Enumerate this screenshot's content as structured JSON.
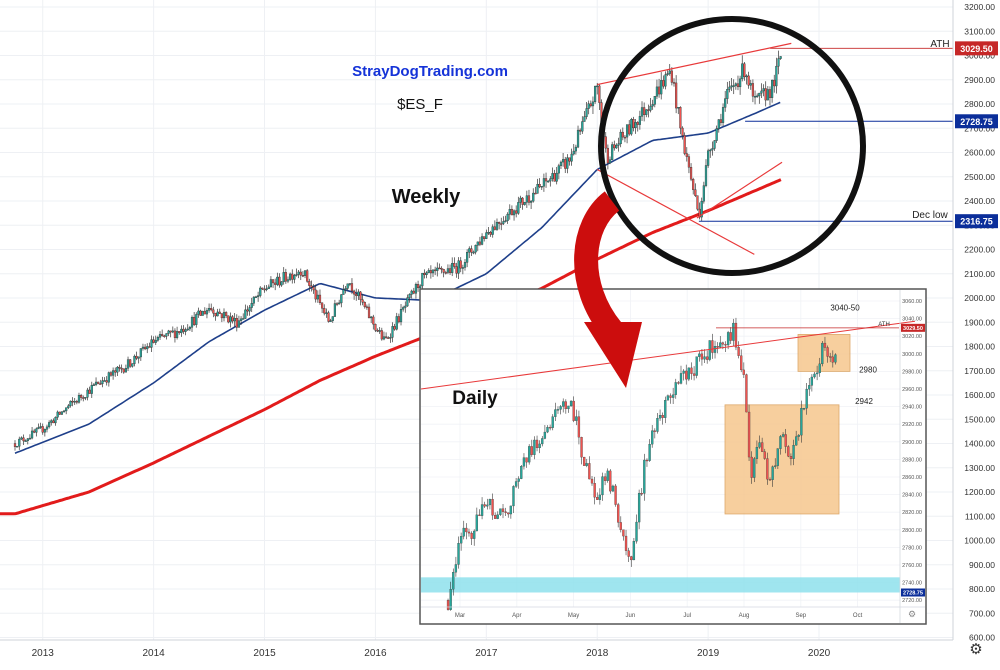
{
  "annotations": {
    "site": "StrayDogTrading.com",
    "symbol": "$ES_F",
    "weekly_label": "Weekly",
    "daily_label": "Daily",
    "ath": "ATH",
    "dec_low": "Dec low"
  },
  "colors": {
    "up_candle": "#26a69a",
    "down_candle": "#ef5350",
    "ma_fast": "#1e3f8a",
    "ma_slow": "#e21b1b",
    "trendline": "#e8393a",
    "blue_level": "#0b2e9a",
    "highlight_box": "#f6c78e",
    "support_zone": "#8ee0ec",
    "site_text": "#1533d8",
    "arrow": "#cc0d0d",
    "circle": "#111111"
  },
  "chart_data": [
    {
      "type": "line",
      "title": "",
      "timeframe": "Weekly",
      "x_tick_labels": [
        "2013",
        "2014",
        "2015",
        "2016",
        "2017",
        "2018",
        "2019",
        "2020"
      ],
      "y_tick_labels": [
        "3200.00",
        "3100.00",
        "3000.00",
        "2900.00",
        "2800.00",
        "2700.00",
        "2600.00",
        "2500.00",
        "2400.00",
        "2300.00",
        "2200.00",
        "2100.00",
        "2000.00",
        "1900.00",
        "1800.00",
        "1700.00",
        "1600.00",
        "1500.00",
        "1400.00",
        "1300.00",
        "1200.00",
        "1100.00",
        "1000.00",
        "900.00",
        "800.00",
        "700.00",
        "600.00"
      ],
      "ylim": [
        600,
        3200
      ],
      "price_series": {
        "name": "",
        "x": [
          "2012-10",
          "2013-01",
          "2013-04",
          "2013-07",
          "2013-10",
          "2014-01",
          "2014-04",
          "2014-07",
          "2014-10",
          "2015-01",
          "2015-05",
          "2015-08",
          "2015-10",
          "2016-01",
          "2016-02",
          "2016-06",
          "2016-10",
          "2017-01",
          "2017-04",
          "2017-07",
          "2017-10",
          "2018-01",
          "2018-02",
          "2018-06",
          "2018-09",
          "2018-10",
          "2018-12",
          "2019-01",
          "2019-03",
          "2019-05",
          "2019-06",
          "2019-08",
          "2019-09"
        ],
        "values": [
          1400,
          1460,
          1560,
          1650,
          1720,
          1820,
          1870,
          1960,
          1900,
          2040,
          2120,
          1900,
          2080,
          1880,
          1820,
          2080,
          2130,
          2270,
          2370,
          2460,
          2570,
          2870,
          2580,
          2770,
          2940,
          2700,
          2340,
          2590,
          2830,
          2950,
          2800,
          2870,
          3020
        ]
      },
      "ma_fast": {
        "name": "",
        "x": [
          "2012-10",
          "2013-06",
          "2014-01",
          "2014-07",
          "2015-01",
          "2015-07",
          "2016-01",
          "2016-07",
          "2017-01",
          "2017-07",
          "2018-01",
          "2018-07",
          "2019-01",
          "2019-06",
          "2019-09"
        ],
        "values": [
          1360,
          1480,
          1650,
          1820,
          1950,
          2060,
          2000,
          1990,
          2100,
          2290,
          2530,
          2650,
          2680,
          2760,
          2810
        ]
      },
      "ma_slow": {
        "name": "",
        "x": [
          "2012-06",
          "2012-10",
          "2013-06",
          "2014-01",
          "2014-07",
          "2015-01",
          "2015-07",
          "2016-01",
          "2016-07",
          "2017-01",
          "2017-07",
          "2018-01",
          "2018-07",
          "2019-01",
          "2019-09"
        ],
        "values": [
          1110,
          1110,
          1200,
          1320,
          1430,
          1540,
          1660,
          1760,
          1850,
          1940,
          2040,
          2160,
          2270,
          2360,
          2490
        ]
      },
      "levels": [
        {
          "label": "ATH",
          "value": 3029.5
        },
        {
          "label": "",
          "value": 2728.75
        },
        {
          "label": "Dec low",
          "value": 2316.75
        }
      ]
    },
    {
      "type": "line",
      "title": "",
      "timeframe": "Daily",
      "x_tick_labels": [
        "Mar",
        "Apr",
        "May",
        "Jun",
        "Jul",
        "Aug",
        "Sep",
        "Oct"
      ],
      "y_tick_labels": [
        "3060.00",
        "3040.00",
        "3020.00",
        "3000.00",
        "2980.00",
        "2960.00",
        "2940.00",
        "2920.00",
        "2900.00",
        "2880.00",
        "2860.00",
        "2840.00",
        "2820.00",
        "2800.00",
        "2780.00",
        "2760.00",
        "2740.00",
        "2720.00"
      ],
      "ylim": [
        2710,
        3070
      ],
      "price_series": {
        "name": "",
        "x": [
          "Feb 25",
          "Mar 1",
          "Mar 8",
          "Mar 15",
          "Mar 25",
          "Apr 5",
          "Apr 15",
          "Apr 30",
          "May 7",
          "May 13",
          "May 20",
          "May 31",
          "Jun 3",
          "Jun 10",
          "Jun 20",
          "Jul 1",
          "Jul 8",
          "Jul 15",
          "Jul 26",
          "Aug 1",
          "Aug 5",
          "Aug 9",
          "Aug 15",
          "Aug 22",
          "Aug 26",
          "Sep 3",
          "Sep 9",
          "Sep 13",
          "Sep 20"
        ],
        "values": [
          2720,
          2790,
          2800,
          2830,
          2810,
          2880,
          2910,
          2950,
          2870,
          2840,
          2860,
          2760,
          2800,
          2890,
          2940,
          2980,
          2990,
          3010,
          3025,
          2980,
          2850,
          2910,
          2850,
          2920,
          2870,
          2950,
          2985,
          3005,
          2995
        ]
      },
      "levels": [
        {
          "label": "3040-50",
          "value": 3045
        },
        {
          "label": "ATH",
          "value": 3029.5
        },
        {
          "label": "2980",
          "value": 2980
        },
        {
          "label": "2942",
          "value": 2942
        },
        {
          "label": "",
          "value": 2728.75
        }
      ]
    }
  ]
}
